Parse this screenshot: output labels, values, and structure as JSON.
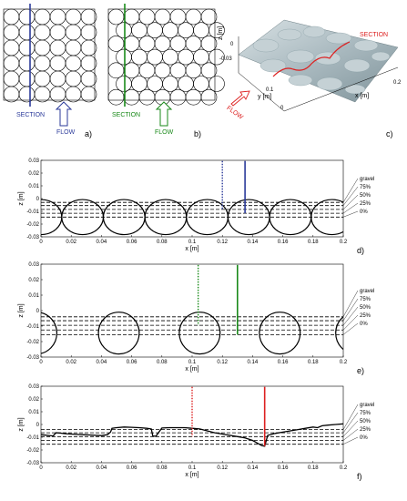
{
  "panels_top": {
    "a": {
      "letter": "a)",
      "section_label": "SECTION",
      "flow_label": "FLOW",
      "section_color": "#2b3a9a",
      "flow_color": "#2b3a9a"
    },
    "b": {
      "letter": "b)",
      "section_label": "SECTION",
      "flow_label": "FLOW",
      "section_color": "#1a8a1a",
      "flow_color": "#1a8a1a"
    },
    "c": {
      "letter": "c)",
      "section_label": "SECTION",
      "flow_label": "FLOW",
      "zlabel": "z [m]",
      "xlabel": "x [m]",
      "ylabel": "y [m]",
      "z_ticks": [
        "0",
        "-0.03"
      ],
      "x_ticks": [
        "0.2"
      ],
      "y_ticks": [
        "0.1",
        "0"
      ],
      "section_color": "#dd2020"
    }
  },
  "chart_data": [
    {
      "type": "line",
      "panel": "d)",
      "xlabel": "x [m]",
      "ylabel": "z [m]",
      "xlim": [
        0,
        0.2
      ],
      "ylim": [
        -0.03,
        0.03
      ],
      "x_ticks": [
        "0",
        "0.02",
        "0.04",
        "0.06",
        "0.08",
        "0.1",
        "0.12",
        "0.14",
        "0.16",
        "0.18",
        "0.2"
      ],
      "y_ticks": [
        "0.03",
        "0.02",
        "0.01",
        "0",
        "-0.01",
        "-0.02",
        "-0.03"
      ],
      "levels": [
        {
          "label": "gravel",
          "z": -0.003
        },
        {
          "label": "75%",
          "z": -0.0055
        },
        {
          "label": "50%",
          "z": -0.0085
        },
        {
          "label": "25%",
          "z": -0.0115
        },
        {
          "label": "0%",
          "z": -0.0145
        }
      ],
      "circles": {
        "centers": [
          0,
          0.0275,
          0.055,
          0.0825,
          0.11,
          0.1375,
          0.165,
          0.1925
        ],
        "radius": 0.01375,
        "cz": -0.0145
      },
      "solid_line_x": 0.135,
      "dotted_line_x": 0.12,
      "line_color": "#2b3a9a"
    },
    {
      "type": "line",
      "panel": "e)",
      "xlabel": "x [m]",
      "ylabel": "z [m]",
      "xlim": [
        0,
        0.2
      ],
      "ylim": [
        -0.03,
        0.03
      ],
      "x_ticks": [
        "0",
        "0.02",
        "0.04",
        "0.06",
        "0.08",
        "0.1",
        "0.12",
        "0.14",
        "0.16",
        "0.18",
        "0.2"
      ],
      "y_ticks": [
        "0.03",
        "0.02",
        "0.01",
        "0",
        "-0.01",
        "-0.02",
        "-0.03"
      ],
      "levels": [
        {
          "label": "gravel",
          "z": -0.004
        },
        {
          "label": "75%",
          "z": -0.0065
        },
        {
          "label": "50%",
          "z": -0.0095
        },
        {
          "label": "25%",
          "z": -0.0125
        },
        {
          "label": "0%",
          "z": -0.0155
        }
      ],
      "circles": {
        "centers": [
          -0.003,
          0.0515,
          0.105,
          0.158,
          0.2085
        ],
        "radius": 0.0135,
        "cz": -0.0145
      },
      "solid_line_x": 0.13,
      "dotted_line_x": 0.104,
      "line_color": "#1a8a1a"
    },
    {
      "type": "line",
      "panel": "f)",
      "xlabel": "x [m]",
      "ylabel": "z [m]",
      "xlim": [
        0,
        0.2
      ],
      "ylim": [
        -0.03,
        0.03
      ],
      "x_ticks": [
        "0",
        "0.02",
        "0.04",
        "0.06",
        "0.08",
        "0.1",
        "0.12",
        "0.14",
        "0.16",
        "0.18",
        "0.2"
      ],
      "y_ticks": [
        "0.03",
        "0.02",
        "0.01",
        "0",
        "-0.01",
        "-0.02",
        "-0.03"
      ],
      "levels": [
        {
          "label": "gravel",
          "z": -0.004
        },
        {
          "label": "75%",
          "z": -0.0065
        },
        {
          "label": "50%",
          "z": -0.0095
        },
        {
          "label": "25%",
          "z": -0.0125
        },
        {
          "label": "0%",
          "z": -0.0155
        }
      ],
      "profile": {
        "x": [
          0,
          0.004,
          0.008,
          0.01,
          0.013,
          0.016,
          0.02,
          0.024,
          0.028,
          0.032,
          0.036,
          0.04,
          0.044,
          0.046,
          0.047,
          0.05,
          0.055,
          0.06,
          0.065,
          0.07,
          0.073,
          0.074,
          0.076,
          0.08,
          0.085,
          0.09,
          0.095,
          0.1,
          0.105,
          0.11,
          0.115,
          0.12,
          0.125,
          0.13,
          0.135,
          0.14,
          0.143,
          0.146,
          0.148,
          0.15,
          0.155,
          0.16,
          0.165,
          0.17,
          0.175,
          0.18,
          0.183,
          0.186,
          0.19,
          0.195,
          0.2
        ],
        "z": [
          -0.008,
          -0.0085,
          -0.009,
          -0.0065,
          -0.0068,
          -0.0072,
          -0.0075,
          -0.0078,
          -0.008,
          -0.0082,
          -0.0085,
          -0.0087,
          -0.008,
          -0.006,
          -0.003,
          -0.0025,
          -0.002,
          -0.0022,
          -0.0025,
          -0.003,
          -0.0035,
          -0.009,
          -0.0092,
          -0.0028,
          -0.0025,
          -0.0025,
          -0.0025,
          -0.003,
          -0.0035,
          -0.005,
          -0.0065,
          -0.0075,
          -0.0085,
          -0.0095,
          -0.0105,
          -0.0125,
          -0.0145,
          -0.0165,
          -0.017,
          -0.0085,
          -0.007,
          -0.006,
          -0.005,
          -0.004,
          -0.003,
          -0.002,
          -0.0025,
          -0.001,
          -0.0005,
          0,
          0.0005
        ]
      },
      "solid_line_x": 0.148,
      "dotted_line_x": 0.1,
      "line_color": "#dd2020"
    }
  ]
}
